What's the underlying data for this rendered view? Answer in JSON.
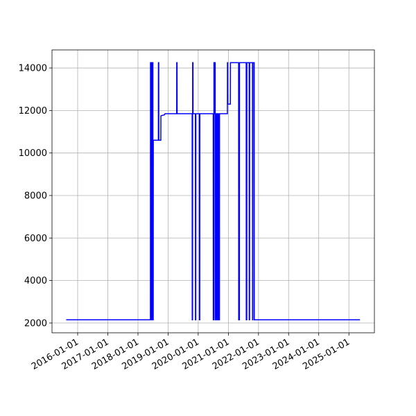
{
  "chart_data": {
    "type": "line",
    "x": [
      "2015-08-15",
      "2018-06-01",
      "2018-06-02",
      "2018-06-10",
      "2018-06-11",
      "2018-06-20",
      "2018-06-21",
      "2018-07-01",
      "2018-07-02",
      "2018-07-05",
      "2018-07-06",
      "2018-09-05",
      "2018-09-06",
      "2018-09-10",
      "2018-09-11",
      "2018-10-05",
      "2018-10-06",
      "2018-11-20",
      "2018-11-25",
      "2019-04-15",
      "2019-04-16",
      "2019-04-20",
      "2019-04-21",
      "2019-10-20",
      "2019-10-21",
      "2019-10-25",
      "2019-10-26",
      "2019-10-30",
      "2019-10-31",
      "2019-11-28",
      "2019-11-29",
      "2019-12-03",
      "2019-12-04",
      "2020-01-15",
      "2020-01-16",
      "2020-01-20",
      "2020-01-21",
      "2020-07-01",
      "2020-07-02",
      "2020-07-09",
      "2020-07-10",
      "2020-07-15",
      "2020-07-16",
      "2020-07-20",
      "2020-07-21",
      "2020-07-25",
      "2020-07-26",
      "2020-08-05",
      "2020-08-06",
      "2020-08-15",
      "2020-08-16",
      "2020-08-25",
      "2020-08-26",
      "2020-09-05",
      "2020-09-06",
      "2020-09-15",
      "2020-09-16",
      "2020-12-20",
      "2020-12-21",
      "2020-12-24",
      "2020-12-25",
      "2021-01-25",
      "2021-01-26",
      "2021-05-05",
      "2021-05-06",
      "2021-05-15",
      "2021-05-16",
      "2021-08-05",
      "2021-08-06",
      "2021-08-12",
      "2021-08-13",
      "2021-09-10",
      "2021-09-11",
      "2021-09-15",
      "2021-09-16",
      "2021-10-20",
      "2021-10-21",
      "2021-10-25",
      "2021-10-26",
      "2021-11-10",
      "2021-11-11",
      "2025-05-15"
    ],
    "series": [
      {
        "color": "#0000ff",
        "values": [
          2150,
          2150,
          14250,
          14250,
          2150,
          2150,
          14250,
          14250,
          2150,
          2150,
          10600,
          10600,
          14250,
          14250,
          10600,
          10600,
          11750,
          11800,
          11850,
          11850,
          14250,
          14250,
          11850,
          11850,
          2150,
          2150,
          14250,
          14250,
          11850,
          11850,
          2150,
          2150,
          11850,
          11850,
          2150,
          2150,
          11850,
          11850,
          2150,
          2150,
          14250,
          14250,
          11850,
          11850,
          14250,
          14250,
          2150,
          2150,
          11850,
          11850,
          2150,
          2150,
          11850,
          11850,
          2150,
          2150,
          11850,
          11850,
          14250,
          14250,
          12300,
          12300,
          14250,
          14250,
          2150,
          2150,
          14250,
          14250,
          2150,
          2150,
          14250,
          14250,
          2150,
          2150,
          14250,
          14250,
          2150,
          2150,
          14250,
          14250,
          2150,
          2150
        ]
      }
    ],
    "xlim": [
      "2015-02-24",
      "2025-11-06"
    ],
    "xticks": [
      "2016-01-01",
      "2017-01-01",
      "2018-01-01",
      "2019-01-01",
      "2020-01-01",
      "2021-01-01",
      "2022-01-01",
      "2023-01-01",
      "2024-01-01",
      "2025-01-01"
    ],
    "ylim": [
      1540,
      14850
    ],
    "yticks": [
      2000,
      4000,
      6000,
      8000,
      10000,
      12000,
      14000
    ],
    "grid": true
  }
}
